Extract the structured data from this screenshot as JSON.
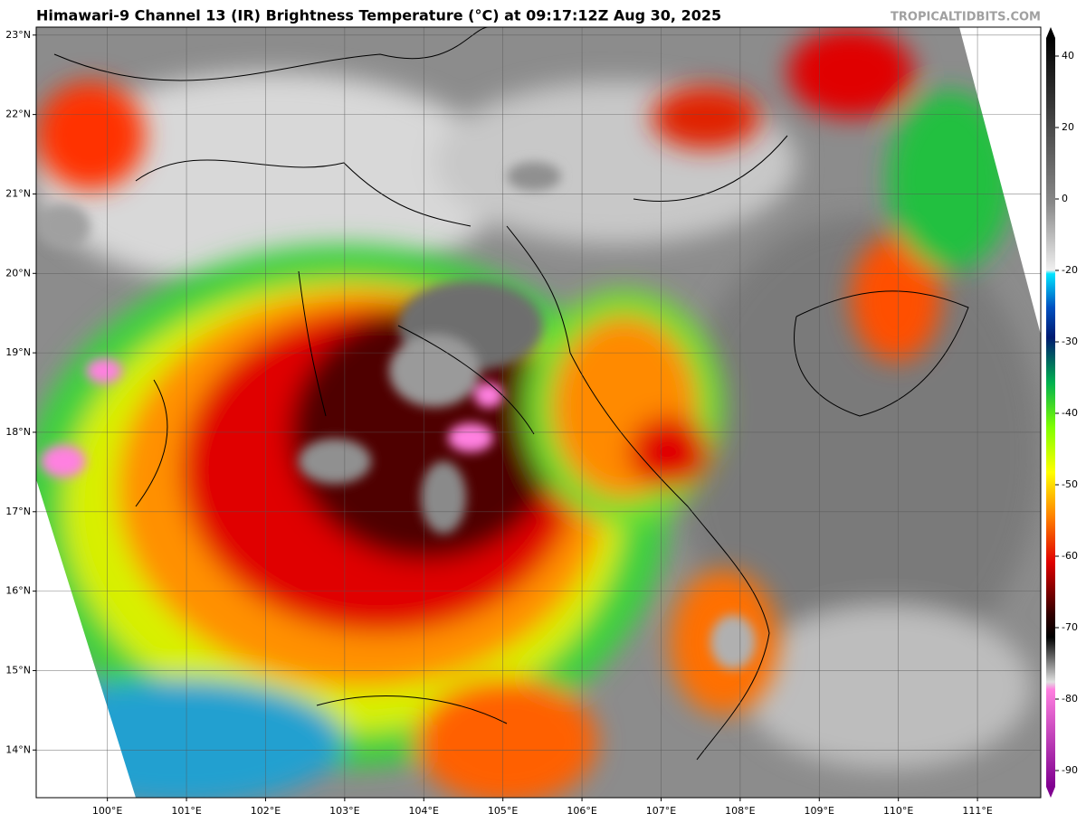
{
  "header": {
    "title": "Himawari-9 Channel 13 (IR) Brightness Temperature (°C) at 09:17:12Z Aug 30, 2025",
    "source": "TROPICALTIDBITS.COM"
  },
  "map": {
    "lon_range": [
      99.1,
      111.8
    ],
    "lat_range": [
      13.4,
      23.1
    ],
    "lon_ticks": [
      {
        "value": 100,
        "label": "100°E"
      },
      {
        "value": 101,
        "label": "101°E"
      },
      {
        "value": 102,
        "label": "102°E"
      },
      {
        "value": 103,
        "label": "103°E"
      },
      {
        "value": 104,
        "label": "104°E"
      },
      {
        "value": 105,
        "label": "105°E"
      },
      {
        "value": 106,
        "label": "106°E"
      },
      {
        "value": 107,
        "label": "107°E"
      },
      {
        "value": 108,
        "label": "108°E"
      },
      {
        "value": 109,
        "label": "109°E"
      },
      {
        "value": 110,
        "label": "110°E"
      },
      {
        "value": 111,
        "label": "111°E"
      }
    ],
    "lat_ticks": [
      {
        "value": 23,
        "label": "23°N"
      },
      {
        "value": 22,
        "label": "22°N"
      },
      {
        "value": 21,
        "label": "21°N"
      },
      {
        "value": 20,
        "label": "20°N"
      },
      {
        "value": 19,
        "label": "19°N"
      },
      {
        "value": 18,
        "label": "18°N"
      },
      {
        "value": 17,
        "label": "17°N"
      },
      {
        "value": 16,
        "label": "16°N"
      },
      {
        "value": 15,
        "label": "15°N"
      },
      {
        "value": 14,
        "label": "14°N"
      }
    ]
  },
  "colorbar": {
    "ticks": [
      40,
      20,
      0,
      -20,
      -30,
      -40,
      -50,
      -60,
      -70,
      -80,
      -90
    ]
  }
}
